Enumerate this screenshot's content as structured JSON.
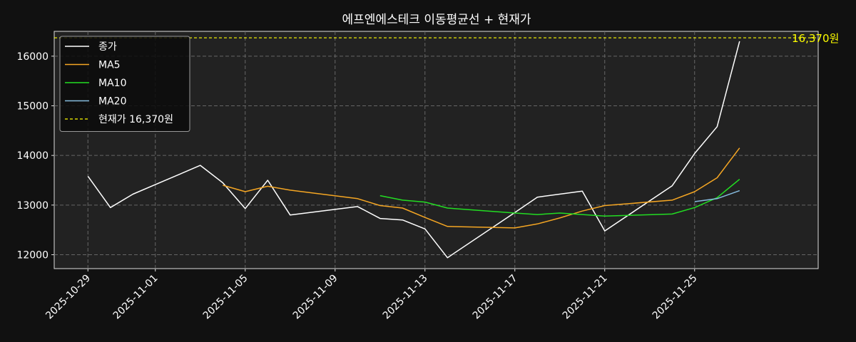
{
  "chart_data": {
    "type": "line",
    "title": "에프엔에스테크 이동평균선 + 현재가",
    "xlabel": "",
    "ylabel": "",
    "x_ticks": [
      "2025-10-29",
      "2025-11-01",
      "2025-11-05",
      "2025-11-09",
      "2025-11-13",
      "2025-11-17",
      "2025-11-21",
      "2025-11-25"
    ],
    "y_ticks": [
      12000,
      13000,
      14000,
      15000,
      16000
    ],
    "xlim": [
      "2025-10-27.5",
      "2025-11-30.5"
    ],
    "ylim": [
      11720,
      16500
    ],
    "grid": true,
    "legend_position": "top-left",
    "current_price": {
      "value": 16370,
      "label": "16,370원",
      "legend": "현재가 16,370원",
      "color": "#ffff00"
    },
    "series": [
      {
        "name": "종가",
        "color": "#ffffff",
        "points": [
          [
            "2025-10-29",
            13580
          ],
          [
            "2025-10-30",
            12950
          ],
          [
            "2025-10-31",
            13220
          ],
          [
            "2025-11-03",
            13800
          ],
          [
            "2025-11-04",
            13450
          ],
          [
            "2025-11-05",
            12930
          ],
          [
            "2025-11-06",
            13500
          ],
          [
            "2025-11-07",
            12800
          ],
          [
            "2025-11-10",
            12970
          ],
          [
            "2025-11-11",
            12730
          ],
          [
            "2025-11-12",
            12700
          ],
          [
            "2025-11-13",
            12520
          ],
          [
            "2025-11-14",
            11940
          ],
          [
            "2025-11-17",
            12850
          ],
          [
            "2025-11-18",
            13160
          ],
          [
            "2025-11-20",
            13280
          ],
          [
            "2025-11-21",
            12480
          ],
          [
            "2025-11-24",
            13390
          ],
          [
            "2025-11-25",
            14040
          ],
          [
            "2025-11-26",
            14580
          ],
          [
            "2025-11-27",
            16300
          ]
        ]
      },
      {
        "name": "MA5",
        "color": "#f5a623",
        "points": [
          [
            "2025-11-04",
            13400
          ],
          [
            "2025-11-05",
            13270
          ],
          [
            "2025-11-06",
            13380
          ],
          [
            "2025-11-07",
            13300
          ],
          [
            "2025-11-10",
            13130
          ],
          [
            "2025-11-11",
            12990
          ],
          [
            "2025-11-12",
            12940
          ],
          [
            "2025-11-13",
            12750
          ],
          [
            "2025-11-14",
            12570
          ],
          [
            "2025-11-17",
            12540
          ],
          [
            "2025-11-18",
            12620
          ],
          [
            "2025-11-19",
            12740
          ],
          [
            "2025-11-20",
            12880
          ],
          [
            "2025-11-21",
            12990
          ],
          [
            "2025-11-24",
            13100
          ],
          [
            "2025-11-25",
            13270
          ],
          [
            "2025-11-26",
            13550
          ],
          [
            "2025-11-27",
            14150
          ]
        ]
      },
      {
        "name": "MA10",
        "color": "#22dd22",
        "points": [
          [
            "2025-11-11",
            13190
          ],
          [
            "2025-11-12",
            13100
          ],
          [
            "2025-11-13",
            13060
          ],
          [
            "2025-11-14",
            12940
          ],
          [
            "2025-11-17",
            12840
          ],
          [
            "2025-11-18",
            12810
          ],
          [
            "2025-11-19",
            12840
          ],
          [
            "2025-11-20",
            12810
          ],
          [
            "2025-11-21",
            12780
          ],
          [
            "2025-11-24",
            12820
          ],
          [
            "2025-11-25",
            12950
          ],
          [
            "2025-11-26",
            13150
          ],
          [
            "2025-11-27",
            13520
          ]
        ]
      },
      {
        "name": "MA20",
        "color": "#87bde0",
        "points": [
          [
            "2025-11-25",
            13070
          ],
          [
            "2025-11-26",
            13130
          ],
          [
            "2025-11-27",
            13290
          ]
        ]
      }
    ]
  }
}
